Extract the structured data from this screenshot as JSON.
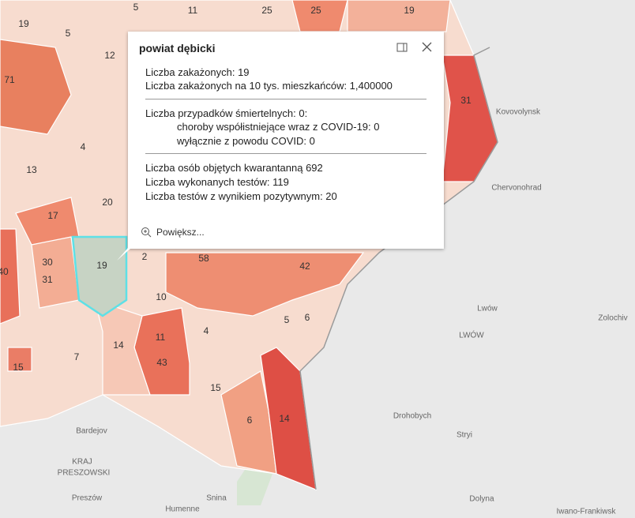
{
  "popup": {
    "title": "powiat dębicki",
    "section1": [
      "Liczba zakażonych: 19",
      "Liczba zakażonych na 10 tys. mieszkańców: 1,400000"
    ],
    "section2": [
      "Liczba przypadków śmiertelnych: 0:",
      "choroby współistniejące wraz z COVID-19: 0",
      "wyłącznie z powodu COVID: 0"
    ],
    "section3": [
      "Liczba osób objętych kwarantanną 692",
      "Liczba wykonanych testów: 119",
      "Liczba testów z wynikiem pozytywnym: 20"
    ],
    "zoom": "Powiększ..."
  },
  "map": {
    "district_labels": [
      5,
      11,
      25,
      25,
      19,
      19,
      5,
      12,
      71,
      31,
      4,
      13,
      20,
      17,
      30,
      31,
      19,
      2,
      58,
      42,
      10,
      5,
      6,
      4,
      11,
      14,
      7,
      43,
      15,
      15,
      6,
      14,
      40
    ],
    "places": [
      "Kovovolynsk",
      "Chervonohrad",
      "Lwów",
      "LWÓW",
      "Zolochiv",
      "Drohobych",
      "Stryi",
      "Bardejov",
      "KRAJ",
      "PRESZOWSKI",
      "Preszów",
      "Humenne",
      "Snina",
      "Dolyna",
      "Iwano-Frankiwsk"
    ]
  }
}
